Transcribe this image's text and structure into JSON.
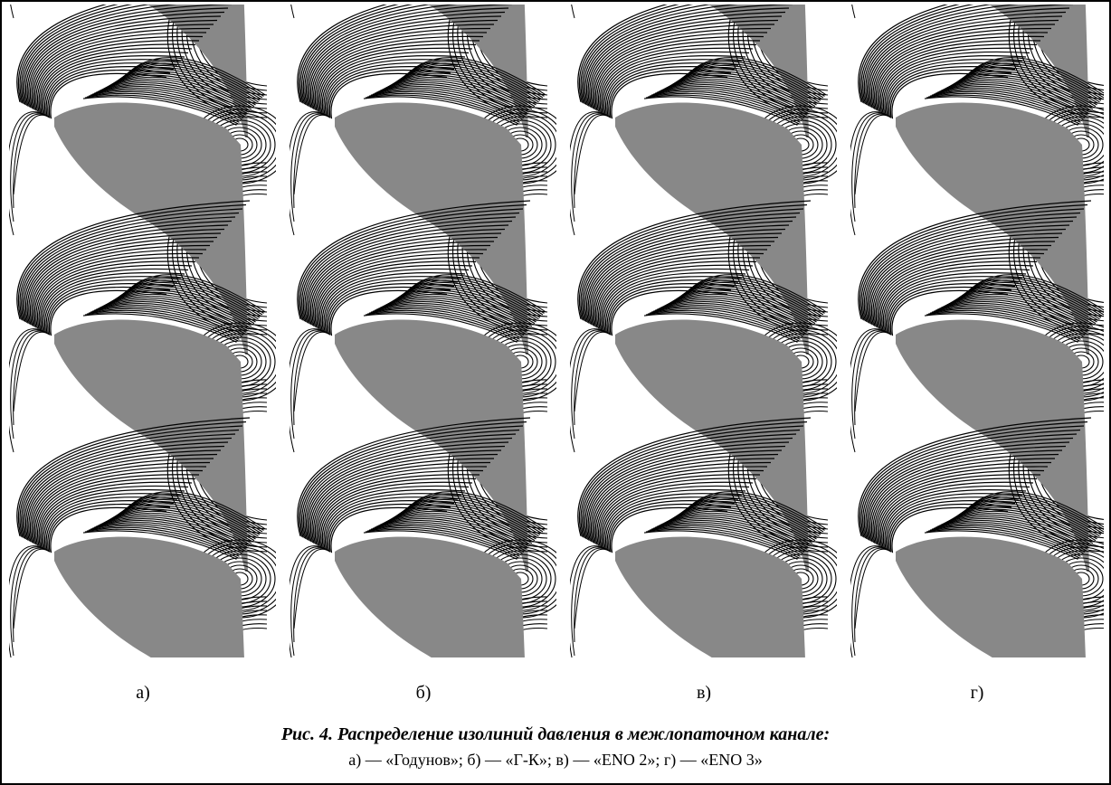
{
  "figure": {
    "panel_labels": [
      "а)",
      "б)",
      "в)",
      "г)"
    ],
    "caption": {
      "title": "Рис. 4. Распределение изолиний давления в межлопаточном канале:",
      "legend": "а) — «Годунов»; б) — «Г-К»; в) — «ENO 2»; г) — «ENO 3»"
    }
  }
}
